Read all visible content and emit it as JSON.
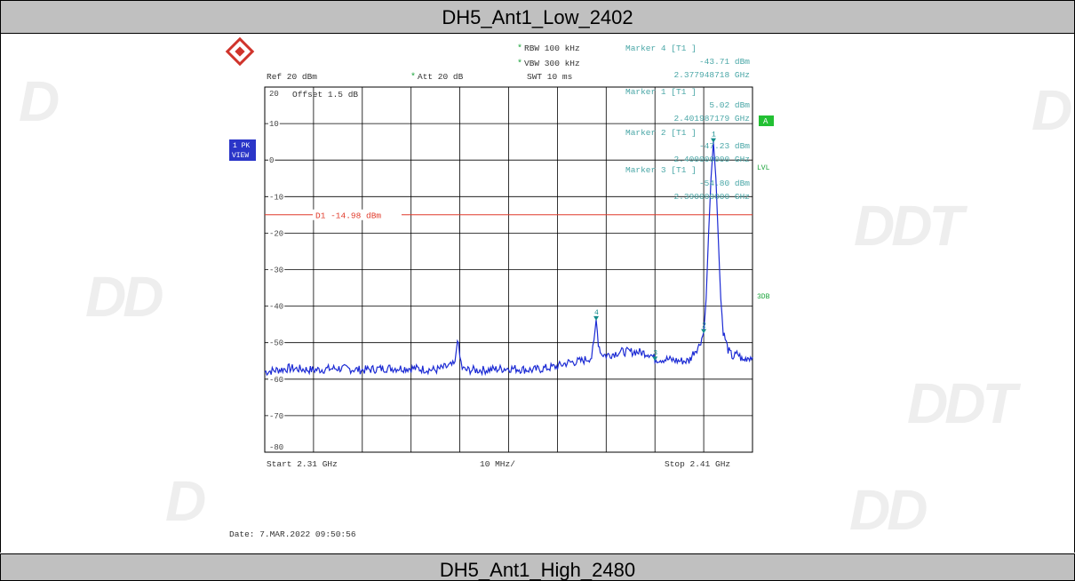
{
  "titles": {
    "top": "DH5_Ant1_Low_2402",
    "bottom": "DH5_Ant1_High_2480"
  },
  "watermark": "DDT",
  "header": {
    "ref": "Ref  20 dBm",
    "att_star": "*",
    "att": "Att  20 dB",
    "rbw_star": "*",
    "rbw": "RBW 100 kHz",
    "vbw_star": "*",
    "vbw": "VBW 300 kHz",
    "swt": "SWT 10 ms"
  },
  "markers_info": [
    {
      "label": "Marker 4 [T1 ]",
      "level": "-43.71 dBm",
      "freq": "2.377948718 GHz"
    },
    {
      "label": "Marker 1 [T1 ]",
      "level": "5.02 dBm",
      "freq": "2.401987179 GHz"
    },
    {
      "label": "Marker 2 [T1 ]",
      "level": "-47.23 dBm",
      "freq": "2.400000000 GHz"
    },
    {
      "label": "Marker 3 [T1 ]",
      "level": "-54.80 dBm",
      "freq": "2.390000000 GHz"
    }
  ],
  "offset_text": "Offset  1.5 dB",
  "side_labels": {
    "pk_line1": "1 PK",
    "pk_line2": "VIEW",
    "a_badge": "A",
    "lvl": "LVL",
    "db3": "3DB"
  },
  "footer": {
    "start": "Start  2.31 GHz",
    "span": "10 MHz/",
    "stop": "Stop  2.41 GHz",
    "date": "Date: 7.MAR.2022  09:50:56"
  },
  "colors": {
    "trace": "#1c2bd4",
    "marker": "#138c8c",
    "info_text": "#4aa7a7",
    "display_line": "#e03a2a",
    "badge": "#22c033",
    "sidebox": "#2a35c8"
  },
  "chart_data": {
    "type": "line",
    "xlim": [
      2.31,
      2.41
    ],
    "ylim": [
      -80,
      20
    ],
    "y_ticks": [
      20,
      10,
      0,
      -10,
      -20,
      -30,
      -40,
      -50,
      -60,
      -70,
      -80
    ],
    "y_tick_labels": [
      "20",
      "10",
      "0",
      "-10",
      "-20",
      "-30",
      "-40",
      "-50",
      "-60",
      "-70",
      "-80"
    ],
    "x_unit": "GHz",
    "y_unit": "dBm",
    "grid": true,
    "display_line": {
      "label": "D1 -14.98 dBm",
      "value": -14.98
    },
    "markers": [
      {
        "id": "1",
        "x": 2.401987179,
        "y": 5.02
      },
      {
        "id": "2",
        "x": 2.4,
        "y": -47.23
      },
      {
        "id": "3",
        "x": 2.39,
        "y": -54.8
      },
      {
        "id": "4",
        "x": 2.377948718,
        "y": -43.71
      }
    ],
    "series": [
      {
        "x": [
          2.31,
          2.315,
          2.32,
          2.325,
          2.33,
          2.335,
          2.34,
          2.345,
          2.349,
          2.3495,
          2.35,
          2.3505,
          2.351,
          2.355,
          2.36,
          2.365,
          2.37,
          2.372,
          2.375,
          2.377,
          2.3775,
          2.37795,
          2.3784,
          2.379,
          2.38,
          2.383,
          2.386,
          2.389,
          2.39,
          2.392,
          2.395,
          2.397,
          2.398,
          2.399,
          2.4,
          2.4005,
          2.401,
          2.4015,
          2.40199,
          2.4025,
          2.403,
          2.4035,
          2.404,
          2.405,
          2.406,
          2.407,
          2.408,
          2.409,
          2.41
        ],
        "y": [
          -58,
          -57,
          -57.5,
          -57,
          -57.5,
          -57,
          -57,
          -57.5,
          -56,
          -48.5,
          -54,
          -57,
          -57.5,
          -57.5,
          -57,
          -57.5,
          -56.5,
          -55.5,
          -55,
          -54,
          -50,
          -43.71,
          -50,
          -53,
          -53.5,
          -52.5,
          -52.5,
          -53,
          -54.5,
          -54.5,
          -55,
          -55,
          -52.5,
          -51,
          -47.23,
          -38,
          -20,
          -5,
          5.02,
          -5,
          -22,
          -38,
          -47,
          -52,
          -54,
          -53,
          -55,
          -54,
          -54
        ]
      }
    ]
  }
}
